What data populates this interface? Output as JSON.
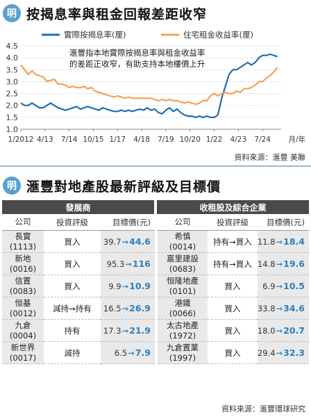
{
  "section1": {
    "title": "按揭息率與租金回報差距收窄",
    "annotation_line1": "滙豐指本地實際按揭息率與租金收益率",
    "annotation_line2": "的差距正收窄，有助支持本地樓價上升",
    "source": "資料來源：滙豐 美聯"
  },
  "chart_data": {
    "type": "line",
    "title": "按揭息率與租金回報差距收窄",
    "ylim": [
      1.0,
      4.5
    ],
    "yticks": [
      "4.5",
      "4.0",
      "3.5",
      "3.0",
      "2.5",
      "2.0",
      "1.5",
      "1.0"
    ],
    "xticks": [
      "1/2012",
      "4/13",
      "7/14",
      "10/15",
      "1/17",
      "4/18",
      "7/19",
      "10/20",
      "1/22",
      "4/23",
      "7/24"
    ],
    "xunit": "月/年",
    "legend_position": "top",
    "grid": true,
    "series": [
      {
        "name": "實際按揭息率(厘)",
        "color": "#1f6fb0",
        "points": [
          [
            0,
            2.1
          ],
          [
            2,
            2.0
          ],
          [
            4,
            2.0
          ],
          [
            6,
            2.1
          ],
          [
            8,
            2.0
          ],
          [
            10,
            1.9
          ],
          [
            12,
            1.9
          ],
          [
            14,
            2.0
          ],
          [
            16,
            2.1
          ],
          [
            18,
            2.0
          ],
          [
            20,
            1.9
          ],
          [
            22,
            1.85
          ],
          [
            24,
            1.8
          ],
          [
            26,
            1.85
          ],
          [
            28,
            1.9
          ],
          [
            30,
            1.95
          ],
          [
            32,
            1.85
          ],
          [
            34,
            1.9
          ],
          [
            36,
            1.95
          ],
          [
            38,
            1.9
          ],
          [
            40,
            1.85
          ],
          [
            42,
            1.8
          ],
          [
            44,
            1.9
          ],
          [
            46,
            1.85
          ],
          [
            48,
            1.8
          ],
          [
            50,
            1.75
          ],
          [
            52,
            1.75
          ],
          [
            54,
            1.8
          ],
          [
            56,
            1.75
          ],
          [
            58,
            1.8
          ],
          [
            60,
            1.75
          ],
          [
            62,
            1.8
          ],
          [
            64,
            1.85
          ],
          [
            66,
            1.8
          ],
          [
            68,
            1.9
          ],
          [
            70,
            1.8
          ],
          [
            72,
            1.85
          ],
          [
            74,
            1.7
          ],
          [
            76,
            1.65
          ],
          [
            78,
            1.8
          ],
          [
            80,
            1.9
          ],
          [
            82,
            1.75
          ],
          [
            84,
            1.85
          ],
          [
            86,
            1.7
          ],
          [
            88,
            1.6
          ],
          [
            90,
            1.55
          ],
          [
            92,
            1.55
          ],
          [
            94,
            1.5
          ],
          [
            96,
            1.55
          ],
          [
            98,
            1.5
          ],
          [
            100,
            1.55
          ],
          [
            102,
            1.5
          ],
          [
            104,
            1.5
          ],
          [
            106,
            1.6
          ],
          [
            108,
            2.3
          ],
          [
            110,
            2.8
          ],
          [
            112,
            3.3
          ],
          [
            114,
            3.5
          ],
          [
            116,
            3.5
          ],
          [
            118,
            3.6
          ],
          [
            120,
            3.7
          ],
          [
            122,
            3.8
          ],
          [
            124,
            3.7
          ],
          [
            126,
            3.8
          ],
          [
            128,
            4.0
          ],
          [
            130,
            4.1
          ],
          [
            132,
            4.1
          ],
          [
            134,
            4.15
          ],
          [
            136,
            4.1
          ],
          [
            138,
            4.05
          ]
        ]
      },
      {
        "name": "住宅租金收益率(厘)",
        "color": "#f2a257",
        "points": [
          [
            0,
            3.7
          ],
          [
            2,
            3.5
          ],
          [
            4,
            3.3
          ],
          [
            6,
            3.45
          ],
          [
            8,
            3.3
          ],
          [
            10,
            3.25
          ],
          [
            12,
            3.2
          ],
          [
            14,
            3.0
          ],
          [
            16,
            3.05
          ],
          [
            18,
            3.1
          ],
          [
            20,
            2.9
          ],
          [
            22,
            2.9
          ],
          [
            24,
            2.85
          ],
          [
            26,
            2.75
          ],
          [
            28,
            2.8
          ],
          [
            30,
            2.75
          ],
          [
            32,
            2.75
          ],
          [
            34,
            2.8
          ],
          [
            36,
            2.7
          ],
          [
            38,
            2.75
          ],
          [
            40,
            2.6
          ],
          [
            42,
            2.55
          ],
          [
            44,
            2.5
          ],
          [
            46,
            2.45
          ],
          [
            48,
            2.4
          ],
          [
            50,
            2.35
          ],
          [
            52,
            2.4
          ],
          [
            54,
            2.35
          ],
          [
            56,
            2.3
          ],
          [
            58,
            2.35
          ],
          [
            60,
            2.3
          ],
          [
            62,
            2.3
          ],
          [
            64,
            2.3
          ],
          [
            66,
            2.3
          ],
          [
            68,
            2.3
          ],
          [
            70,
            2.3
          ],
          [
            72,
            2.25
          ],
          [
            74,
            2.2
          ],
          [
            76,
            2.25
          ],
          [
            78,
            2.2
          ],
          [
            80,
            2.25
          ],
          [
            82,
            2.2
          ],
          [
            84,
            2.2
          ],
          [
            86,
            2.15
          ],
          [
            88,
            2.1
          ],
          [
            90,
            2.15
          ],
          [
            92,
            2.1
          ],
          [
            94,
            2.05
          ],
          [
            96,
            2.1
          ],
          [
            98,
            2.2
          ],
          [
            100,
            2.2
          ],
          [
            102,
            2.4
          ],
          [
            104,
            2.5
          ],
          [
            106,
            2.4
          ],
          [
            108,
            2.5
          ],
          [
            110,
            2.55
          ],
          [
            112,
            2.5
          ],
          [
            114,
            2.5
          ],
          [
            116,
            2.6
          ],
          [
            118,
            2.55
          ],
          [
            120,
            2.7
          ],
          [
            122,
            2.7
          ],
          [
            124,
            2.75
          ],
          [
            126,
            2.85
          ],
          [
            128,
            3.0
          ],
          [
            130,
            3.0
          ],
          [
            132,
            3.15
          ],
          [
            134,
            3.25
          ],
          [
            136,
            3.4
          ],
          [
            138,
            3.6
          ]
        ]
      }
    ]
  },
  "section2": {
    "title": "滙豐對地產股最新評級及目標價",
    "group_left": "發展商",
    "group_right": "收租股及綜合企業",
    "headers": {
      "company": "公司",
      "rating": "投資評級",
      "target": "目標價(元)"
    },
    "rows": [
      {
        "l_name": "長實",
        "l_code": "(1113)",
        "l_rating": "買入",
        "l_old": "39.7",
        "l_new": "44.6",
        "r_name": "希慎",
        "r_code": "(0014)",
        "r_rating": "持有→買入",
        "r_old": "11.8",
        "r_new": "18.4"
      },
      {
        "l_name": "新地",
        "l_code": "(0016)",
        "l_rating": "買入",
        "l_old": "95.3",
        "l_new": "116",
        "r_name": "嘉里建設",
        "r_code": "(0683)",
        "r_rating": "持有→買入",
        "r_old": "14.8",
        "r_new": "19.6"
      },
      {
        "l_name": "信置",
        "l_code": "(0083)",
        "l_rating": "買入",
        "l_old": "9.9",
        "l_new": "10.9",
        "r_name": "恒隆地產",
        "r_code": "(0101)",
        "r_rating": "買入",
        "r_old": "6.9",
        "r_new": "10.5"
      },
      {
        "l_name": "恒基",
        "l_code": "(0012)",
        "l_rating": "減持→持有",
        "l_old": "16.5",
        "l_new": "26.9",
        "r_name": "港鐵",
        "r_code": "(0066)",
        "r_rating": "買入",
        "r_old": "33.8",
        "r_new": "34.6"
      },
      {
        "l_name": "九倉",
        "l_code": "(0004)",
        "l_rating": "持有",
        "l_old": "17.3",
        "l_new": "21.9",
        "r_name": "太古地產",
        "r_code": "(1972)",
        "r_rating": "買入",
        "r_old": "18.0",
        "r_new": "20.7"
      },
      {
        "l_name": "新世界",
        "l_code": "(0017)",
        "l_rating": "減持",
        "l_old": "6.5",
        "l_new": "7.9",
        "r_name": "九倉置業",
        "r_code": "(1997)",
        "r_rating": "買入",
        "r_old": "29.4",
        "r_new": "32.3"
      }
    ],
    "arrow": "→",
    "source": "資料來源：滙豐環球研究"
  }
}
